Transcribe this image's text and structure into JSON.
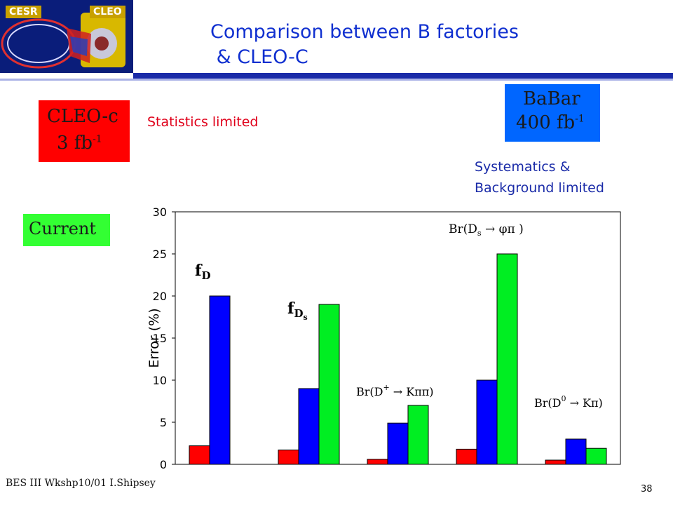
{
  "header": {
    "logo_left": "CESR",
    "logo_right": "CLEO",
    "title_line1": "Comparison between B factories",
    "title_line2": " & CLEO-C"
  },
  "boxes": {
    "cleo": {
      "line1": "CLEO-c",
      "line2_base": "3 fb",
      "line2_sup": "-1",
      "color": "#ff0000"
    },
    "babar": {
      "line1": "BaBar",
      "line2_base": "400 fb",
      "line2_sup": "-1",
      "color": "#0066ff"
    },
    "current": {
      "label": "Current",
      "color": "#33ff33"
    }
  },
  "notes": {
    "statistics": "Statistics limited",
    "systematics_line1": "Systematics &",
    "systematics_line2": "Background limited"
  },
  "chart_data": {
    "type": "bar",
    "ylabel": "Error (%)",
    "ylim": [
      0,
      30
    ],
    "yticks": [
      "0",
      "5",
      "10",
      "15",
      "20",
      "25",
      "30"
    ],
    "categories": [
      "f_D",
      "f_Ds",
      "Br(D+ -> Kpipi)",
      "Br(Ds -> phi pi)",
      "Br(D0 -> Kpi)"
    ],
    "series": [
      {
        "color": "#ff0000",
        "values": [
          2.2,
          1.7,
          0.6,
          1.8,
          0.5
        ]
      },
      {
        "color": "#0000ff",
        "values": [
          20,
          9,
          4.9,
          10,
          3
        ]
      },
      {
        "color": "#00ee22",
        "values": [
          null,
          19,
          7,
          25,
          1.9
        ]
      }
    ],
    "annotations": {
      "fd_base": "f",
      "fd_sub": "D",
      "fds_base": "f",
      "fds_sub": "D",
      "fds_subsub": "s",
      "br_dplus": "Br(D",
      "br_dplus_sup": "+",
      "br_dplus_rest": " → Kππ)",
      "br_ds": "Br(D",
      "br_ds_sub": "s",
      "br_ds_rest": " → φπ )",
      "br_d0": "Br(D",
      "br_d0_sup": "0",
      "br_d0_rest": " → Kπ)"
    }
  },
  "footer": {
    "left": "BES III Wkshp10/01 I.Shipsey",
    "page": "38"
  }
}
